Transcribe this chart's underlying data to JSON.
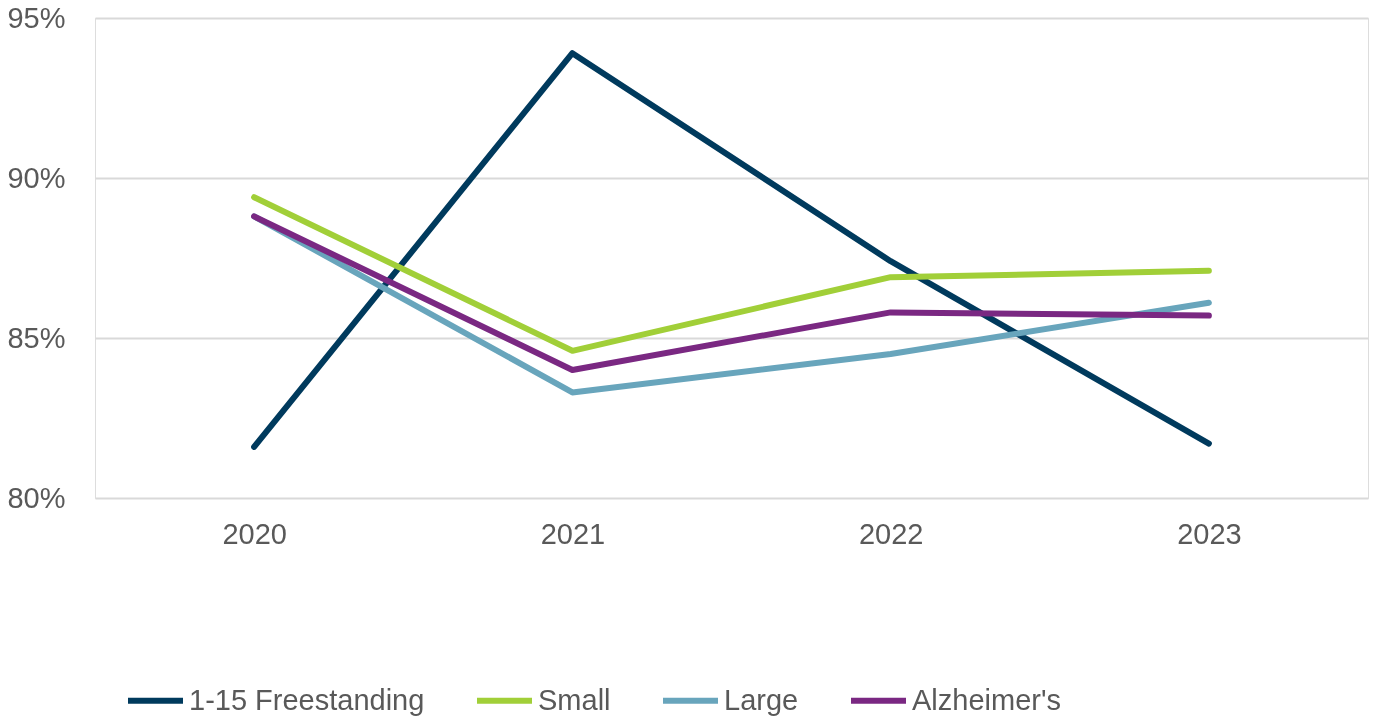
{
  "chart_data": {
    "type": "line",
    "categories": [
      "2020",
      "2021",
      "2022",
      "2023"
    ],
    "series": [
      {
        "name": "1-15 Freestanding",
        "color": "#003a5d",
        "values": [
          81.6,
          93.9,
          87.4,
          81.7
        ]
      },
      {
        "name": "Small",
        "color": "#a1cf38",
        "values": [
          89.4,
          84.6,
          86.9,
          87.1
        ]
      },
      {
        "name": "Large",
        "color": "#68a5bc",
        "values": [
          88.8,
          83.3,
          84.5,
          86.1
        ]
      },
      {
        "name": "Alzheimer's",
        "color": "#7a2882",
        "values": [
          88.8,
          84.0,
          85.8,
          85.7
        ]
      }
    ],
    "ylim": [
      80,
      95
    ],
    "yticks": [
      {
        "value": 80,
        "label": "80%"
      },
      {
        "value": 85,
        "label": "85%"
      },
      {
        "value": 90,
        "label": "90%"
      },
      {
        "value": 95,
        "label": "95%"
      }
    ],
    "grid": "y",
    "legend": "bottom",
    "marker": "none",
    "line_style": "solid"
  }
}
